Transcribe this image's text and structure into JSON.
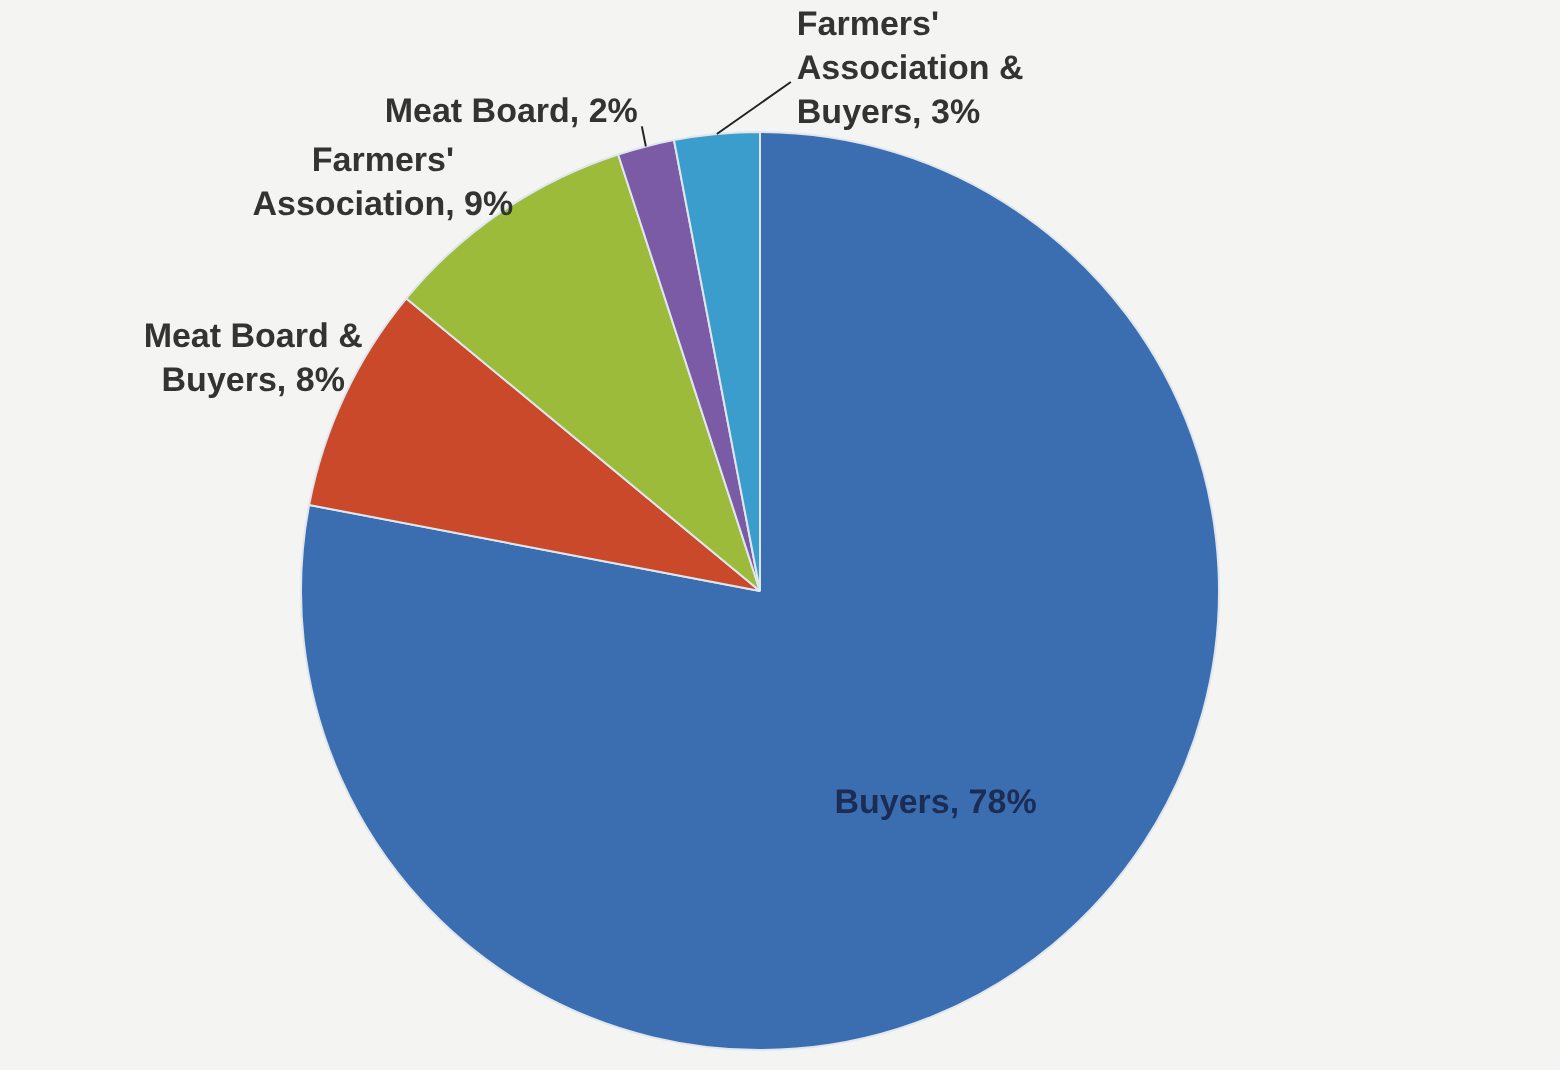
{
  "chart_data": {
    "type": "pie",
    "categories": [
      "Buyers",
      "Meat Board & Buyers",
      "Farmers' Association",
      "Meat Board",
      "Farmers' Association & Buyers"
    ],
    "values": [
      78,
      8,
      9,
      2,
      3
    ],
    "value_labels": [
      "78%",
      "8%",
      "9%",
      "2%",
      "3%"
    ],
    "colors": [
      "#3b6db1",
      "#c9492a",
      "#9dbb3b",
      "#7b5ba6",
      "#3a9dcc"
    ],
    "legend": false
  }
}
